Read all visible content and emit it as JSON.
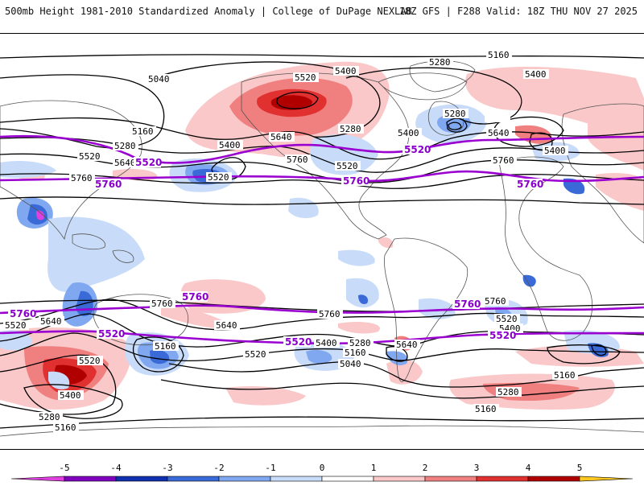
{
  "header": {
    "title": "500mb Height 1981-2010 Standardized Anomaly | College of DuPage NEXLAB",
    "run_info": "18Z GFS | F288 Valid: 18Z THU NOV 27 2025"
  },
  "map": {
    "black_contour_labels": [
      "5160",
      "5280",
      "5400",
      "5520",
      "5640",
      "5760",
      "5040"
    ],
    "purple_contour_labels": [
      "5520",
      "5760"
    ],
    "labels": {
      "nh_5160_top": "5160",
      "nh_5280_top": "5280",
      "nh_5400_a": "5400",
      "nh_5520_a": "5520",
      "nh_5400_b": "5400",
      "nh_5040": "5040",
      "nh_5160_w": "5160",
      "nh_5280_w": "5280",
      "nh_5400_w": "5400",
      "nh_5640_a": "5640",
      "nh_5520_w": "5520",
      "nh_5640_w": "5640",
      "nh_5520_p": "5520",
      "nh_5760_p": "5760",
      "nh_5760_c": "5760",
      "nh_5640_c": "5640",
      "nh_5280_c": "5280",
      "nh_5520_c": "5520",
      "nh_5400_c": "5400",
      "nh_5520_p2": "5520",
      "nh_5760_p2": "5760",
      "nh_5280_e": "5280",
      "nh_5520_e": "5520",
      "nh_5640_e": "5640",
      "nh_5400_e": "5400",
      "nh_5760_e": "5760",
      "nh_5760_p3": "5760",
      "nh_5400_f": "5400",
      "sh_5760_p1": "5760",
      "sh_5520_w": "5520",
      "sh_5640_w": "5640",
      "sh_5760_w": "5760",
      "sh_5760_p2": "5760",
      "sh_5520_p1": "5520",
      "sh_5640_m": "5640",
      "sh_5520_m": "5520",
      "sh_5160_m": "5160",
      "sh_5400_m": "5400",
      "sh_5520_p2": "5520",
      "sh_5280_m": "5280",
      "sh_5160_m2": "5160",
      "sh_5040_m": "5040",
      "sh_5640_s": "5640",
      "sh_5760_mid": "5760",
      "sh_5760_p3": "5760",
      "sh_5760_e": "5760",
      "sh_5520_e": "5520",
      "sh_5400_e": "5400",
      "sh_5520_p3": "5520",
      "sh_5520_w2": "5520",
      "sh_5400_w2": "5400",
      "sh_5280_w2": "5280",
      "sh_5160_w2": "5160",
      "sh_5280_e2": "5280",
      "sh_5160_e2": "5160",
      "sh_5160_e3": "5160"
    }
  },
  "colorbar": {
    "ticks": [
      "-5",
      "-4",
      "-3",
      "-2",
      "-1",
      "0",
      "1",
      "2",
      "3",
      "4",
      "5"
    ],
    "colors": [
      "#e040e0",
      "#8000c0",
      "#1030b0",
      "#3a6ad8",
      "#80a8f0",
      "#c8dcfa",
      "#ffffff",
      "#fac8c8",
      "#f08080",
      "#e03030",
      "#b00000",
      "#ff8c00",
      "#ffc820"
    ]
  },
  "colors": {
    "contour": "#000000",
    "purple_contour": "#9a00d0",
    "coast": "#555555"
  }
}
